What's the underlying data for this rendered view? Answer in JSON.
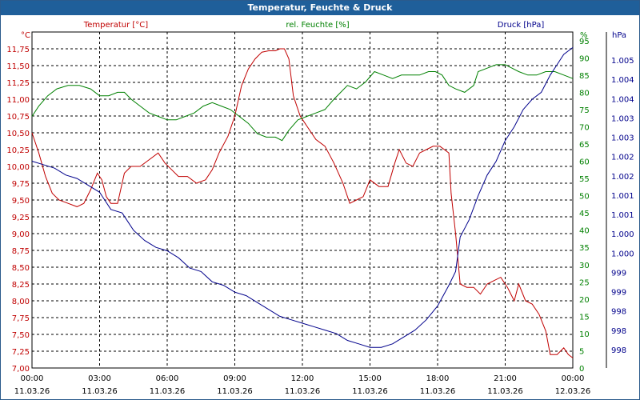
{
  "chart_data": {
    "type": "line",
    "title": "Temperatur, Feuchte & Druck",
    "x_labels": [
      {
        "time": "00:00",
        "date": "11.03.26"
      },
      {
        "time": "03:00",
        "date": "11.03.26"
      },
      {
        "time": "06:00",
        "date": "11.03.26"
      },
      {
        "time": "09:00",
        "date": "11.03.26"
      },
      {
        "time": "12:00",
        "date": "11.03.26"
      },
      {
        "time": "15:00",
        "date": "11.03.26"
      },
      {
        "time": "18:00",
        "date": "11.03.26"
      },
      {
        "time": "21:00",
        "date": "11.03.26"
      },
      {
        "time": "00:00",
        "date": "12.03.26"
      }
    ],
    "x_range_hours": [
      0,
      24
    ],
    "axes": {
      "temperature": {
        "label": "Temperatur [°C]",
        "unit": "°C",
        "color": "#c00000",
        "range": [
          7.0,
          12.0
        ],
        "ticks": [
          "7,00",
          "7,25",
          "7,50",
          "7,75",
          "8,00",
          "8,25",
          "8,50",
          "8,75",
          "9,00",
          "9,25",
          "9,50",
          "9,75",
          "10,00",
          "10,25",
          "10,50",
          "10,75",
          "11,00",
          "11,25",
          "11,50",
          "11,75"
        ]
      },
      "humidity": {
        "label": "rel. Feuchte [%]",
        "unit": "%",
        "color": "#008000",
        "range": [
          0,
          97.5
        ],
        "ticks": [
          "0",
          "5",
          "10",
          "15",
          "20",
          "25",
          "30",
          "35",
          "40",
          "45",
          "50",
          "55",
          "60",
          "65",
          "70",
          "75",
          "80",
          "85",
          "90",
          "95"
        ]
      },
      "pressure": {
        "label": "Druck [hPa]",
        "unit": "hPa",
        "color": "#00008b",
        "ticks": [
          "998",
          "998",
          "998",
          "999",
          "999",
          "1.000",
          "1.000",
          "1.001",
          "1.001",
          "1.002",
          "1.002",
          "1.003",
          "1.003",
          "1.004",
          "1.004",
          "1.005"
        ]
      }
    },
    "series": [
      {
        "name": "Temperatur",
        "axis": "temperature",
        "color": "#c00000",
        "points": [
          [
            0,
            10.5
          ],
          [
            0.3,
            10.2
          ],
          [
            0.6,
            9.85
          ],
          [
            0.9,
            9.6
          ],
          [
            1.2,
            9.5
          ],
          [
            1.6,
            9.45
          ],
          [
            2,
            9.4
          ],
          [
            2.3,
            9.45
          ],
          [
            2.6,
            9.65
          ],
          [
            2.9,
            9.9
          ],
          [
            3.1,
            9.8
          ],
          [
            3.3,
            9.55
          ],
          [
            3.5,
            9.45
          ],
          [
            3.8,
            9.45
          ],
          [
            4.1,
            9.9
          ],
          [
            4.4,
            10.0
          ],
          [
            4.8,
            10.0
          ],
          [
            5.2,
            10.1
          ],
          [
            5.6,
            10.2
          ],
          [
            5.9,
            10.05
          ],
          [
            6.2,
            9.95
          ],
          [
            6.5,
            9.85
          ],
          [
            6.9,
            9.85
          ],
          [
            7.3,
            9.75
          ],
          [
            7.7,
            9.8
          ],
          [
            8.0,
            9.95
          ],
          [
            8.3,
            10.2
          ],
          [
            8.7,
            10.45
          ],
          [
            9.0,
            10.75
          ],
          [
            9.3,
            11.2
          ],
          [
            9.6,
            11.45
          ],
          [
            9.9,
            11.6
          ],
          [
            10.2,
            11.7
          ],
          [
            10.5,
            11.72
          ],
          [
            10.8,
            11.72
          ],
          [
            11.0,
            11.75
          ],
          [
            11.2,
            11.75
          ],
          [
            11.4,
            11.6
          ],
          [
            11.6,
            11.05
          ],
          [
            11.9,
            10.75
          ],
          [
            12.2,
            10.6
          ],
          [
            12.6,
            10.4
          ],
          [
            13.0,
            10.3
          ],
          [
            13.4,
            10.05
          ],
          [
            13.8,
            9.75
          ],
          [
            14.1,
            9.45
          ],
          [
            14.4,
            9.5
          ],
          [
            14.7,
            9.55
          ],
          [
            15.0,
            9.8
          ],
          [
            15.4,
            9.7
          ],
          [
            15.8,
            9.7
          ],
          [
            16.1,
            10.05
          ],
          [
            16.3,
            10.25
          ],
          [
            16.6,
            10.05
          ],
          [
            16.9,
            10.0
          ],
          [
            17.2,
            10.2
          ],
          [
            17.5,
            10.25
          ],
          [
            17.8,
            10.3
          ],
          [
            18.1,
            10.3
          ],
          [
            18.3,
            10.25
          ],
          [
            18.5,
            10.2
          ],
          [
            18.6,
            9.6
          ],
          [
            18.8,
            9.0
          ],
          [
            19.0,
            8.25
          ],
          [
            19.3,
            8.2
          ],
          [
            19.6,
            8.2
          ],
          [
            19.9,
            8.1
          ],
          [
            20.2,
            8.25
          ],
          [
            20.5,
            8.3
          ],
          [
            20.8,
            8.35
          ],
          [
            21.1,
            8.2
          ],
          [
            21.4,
            8.0
          ],
          [
            21.6,
            8.25
          ],
          [
            21.9,
            8.0
          ],
          [
            22.2,
            7.95
          ],
          [
            22.5,
            7.8
          ],
          [
            22.8,
            7.55
          ],
          [
            23.0,
            7.2
          ],
          [
            23.3,
            7.2
          ],
          [
            23.6,
            7.3
          ],
          [
            23.8,
            7.2
          ],
          [
            24.0,
            7.15
          ]
        ]
      },
      {
        "name": "rel. Feuchte",
        "axis": "humidity",
        "color": "#008000",
        "points": [
          [
            0,
            73
          ],
          [
            0.3,
            76
          ],
          [
            0.7,
            79
          ],
          [
            1.1,
            81
          ],
          [
            1.6,
            82
          ],
          [
            2.1,
            82
          ],
          [
            2.6,
            81
          ],
          [
            3.0,
            79
          ],
          [
            3.4,
            79
          ],
          [
            3.8,
            80
          ],
          [
            4.1,
            80
          ],
          [
            4.4,
            78
          ],
          [
            4.8,
            76
          ],
          [
            5.2,
            74
          ],
          [
            5.6,
            73
          ],
          [
            6.0,
            72
          ],
          [
            6.4,
            72
          ],
          [
            6.8,
            73
          ],
          [
            7.2,
            74
          ],
          [
            7.6,
            76
          ],
          [
            8.0,
            77
          ],
          [
            8.4,
            76
          ],
          [
            8.8,
            75
          ],
          [
            9.2,
            73
          ],
          [
            9.6,
            71
          ],
          [
            10.0,
            68
          ],
          [
            10.4,
            67
          ],
          [
            10.8,
            67
          ],
          [
            11.1,
            66
          ],
          [
            11.4,
            69
          ],
          [
            11.8,
            72
          ],
          [
            12.2,
            73
          ],
          [
            12.6,
            74
          ],
          [
            13.0,
            75
          ],
          [
            13.4,
            78
          ],
          [
            13.7,
            80
          ],
          [
            14.0,
            82
          ],
          [
            14.4,
            81
          ],
          [
            14.8,
            83
          ],
          [
            15.2,
            86
          ],
          [
            15.6,
            85
          ],
          [
            16.0,
            84
          ],
          [
            16.4,
            85
          ],
          [
            16.8,
            85
          ],
          [
            17.2,
            85
          ],
          [
            17.6,
            86
          ],
          [
            17.9,
            86
          ],
          [
            18.2,
            85
          ],
          [
            18.5,
            82
          ],
          [
            18.8,
            81
          ],
          [
            19.2,
            80
          ],
          [
            19.6,
            82
          ],
          [
            19.8,
            86
          ],
          [
            20.2,
            87
          ],
          [
            20.6,
            88
          ],
          [
            21.0,
            88
          ],
          [
            21.3,
            87
          ],
          [
            21.6,
            86
          ],
          [
            22.0,
            85
          ],
          [
            22.4,
            85
          ],
          [
            22.8,
            86
          ],
          [
            23.2,
            86
          ],
          [
            23.6,
            85
          ],
          [
            24.0,
            84
          ]
        ]
      },
      {
        "name": "Druck",
        "axis": "pressure",
        "color": "#00008b",
        "points": [
          [
            0,
            60
          ],
          [
            0.5,
            59
          ],
          [
            1.0,
            58
          ],
          [
            1.5,
            56
          ],
          [
            2.0,
            55
          ],
          [
            2.5,
            53
          ],
          [
            3.0,
            51
          ],
          [
            3.5,
            46
          ],
          [
            4.0,
            45
          ],
          [
            4.5,
            40
          ],
          [
            5.0,
            37
          ],
          [
            5.5,
            35
          ],
          [
            6.0,
            34
          ],
          [
            6.5,
            32
          ],
          [
            7.0,
            29
          ],
          [
            7.5,
            28
          ],
          [
            8.0,
            25
          ],
          [
            8.5,
            24
          ],
          [
            9.0,
            22
          ],
          [
            9.5,
            21
          ],
          [
            10.0,
            19
          ],
          [
            10.5,
            17
          ],
          [
            11.0,
            15
          ],
          [
            11.5,
            14
          ],
          [
            12.0,
            13
          ],
          [
            12.5,
            12
          ],
          [
            13.0,
            11
          ],
          [
            13.5,
            10
          ],
          [
            14.0,
            8
          ],
          [
            14.5,
            7
          ],
          [
            15.0,
            6
          ],
          [
            15.5,
            6
          ],
          [
            16.0,
            7
          ],
          [
            16.5,
            9
          ],
          [
            17.0,
            11
          ],
          [
            17.5,
            14
          ],
          [
            18.0,
            18
          ],
          [
            18.5,
            24
          ],
          [
            18.8,
            28
          ],
          [
            19.0,
            38
          ],
          [
            19.4,
            43
          ],
          [
            19.8,
            50
          ],
          [
            20.2,
            56
          ],
          [
            20.6,
            60
          ],
          [
            21.0,
            66
          ],
          [
            21.4,
            70
          ],
          [
            21.8,
            75
          ],
          [
            22.2,
            78
          ],
          [
            22.6,
            80
          ],
          [
            23.0,
            85
          ],
          [
            23.3,
            88
          ],
          [
            23.6,
            91
          ],
          [
            24.0,
            93
          ]
        ]
      }
    ]
  }
}
